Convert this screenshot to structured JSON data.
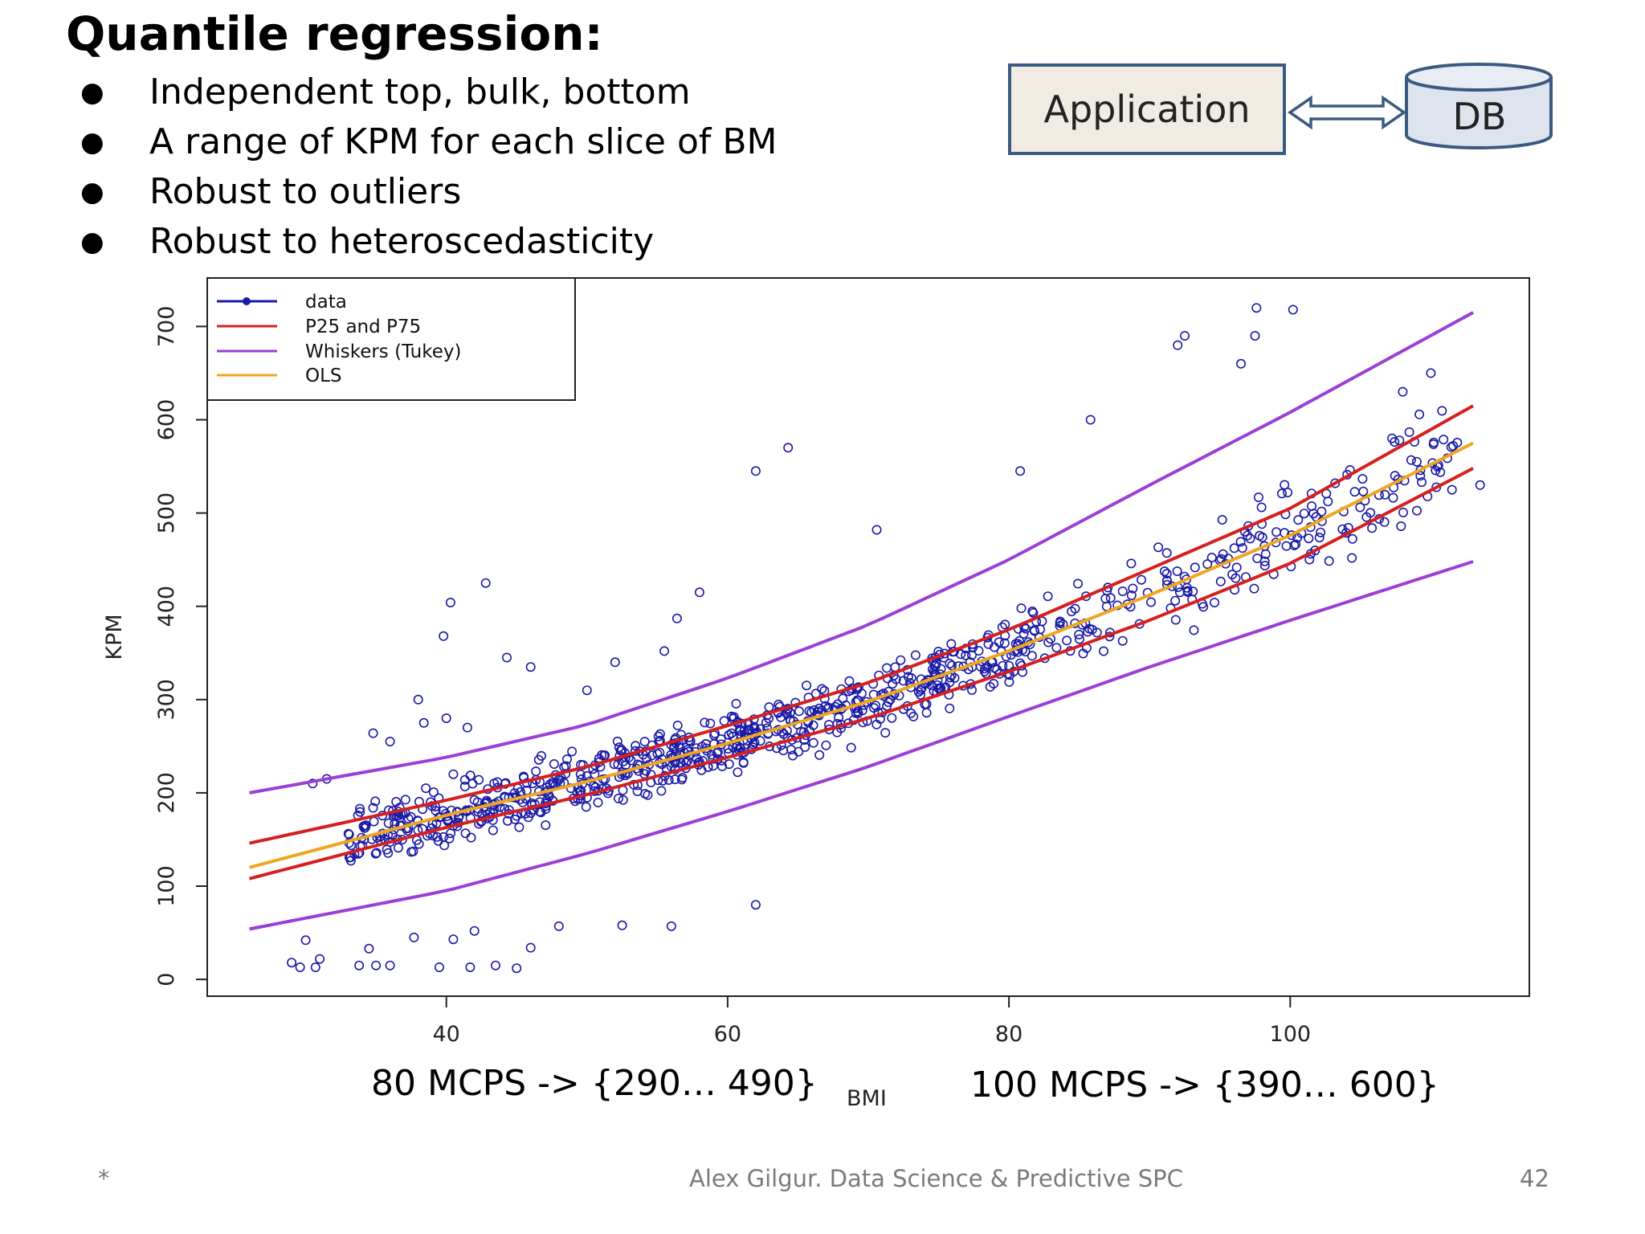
{
  "slide": {
    "title": "Quantile regression:",
    "bullets": [
      "Independent top, bulk, bottom",
      "A range of KPM for each slice of BM",
      "Robust to outliers",
      "Robust to heteroscedasticity"
    ],
    "bullet_glyph": "●",
    "diagram": {
      "app_label": "Application",
      "db_label": "DB"
    },
    "annotations": {
      "left": "80 MCPS -> {290… 490}",
      "right": "100 MCPS -> {390… 600}"
    },
    "footer": {
      "star": "*",
      "author": "Alex Gilgur.  Data Science & Predictive SPC",
      "page": "42"
    }
  },
  "chart_data": {
    "type": "scatter",
    "title": "",
    "xlabel": "BMI",
    "ylabel": "KPM",
    "xlim": [
      23,
      117
    ],
    "ylim": [
      -18,
      752
    ],
    "xticks": [
      40,
      60,
      80,
      100
    ],
    "yticks": [
      0,
      100,
      200,
      300,
      400,
      500,
      600,
      700
    ],
    "xtick_labels": [
      "40",
      "60",
      "80",
      "100"
    ],
    "ytick_labels": [
      "0",
      "100",
      "200",
      "300",
      "400",
      "500",
      "600",
      "700"
    ],
    "grid": false,
    "legend_position": "top-left",
    "legend": [
      {
        "name": "data",
        "color": "#1a1aa8",
        "marker": "dot"
      },
      {
        "name": "P25 and P75",
        "color": "#d61f1f"
      },
      {
        "name": "Whiskers (Tukey)",
        "color": "#9b3fd6"
      },
      {
        "name": "OLS",
        "color": "#f0a51e"
      }
    ],
    "series": [
      {
        "name": "Whiskers upper",
        "color": "#9b3fd6",
        "x": [
          26,
          40,
          50,
          60,
          70,
          80,
          90,
          100,
          113
        ],
        "y": [
          200,
          238,
          273,
          323,
          380,
          450,
          530,
          608,
          715
        ]
      },
      {
        "name": "P75",
        "color": "#d61f1f",
        "x": [
          26,
          40,
          50,
          60,
          70,
          80,
          90,
          100,
          113
        ],
        "y": [
          146,
          192,
          228,
          272,
          318,
          375,
          440,
          505,
          615
        ]
      },
      {
        "name": "OLS",
        "color": "#f0a51e",
        "x": [
          26,
          40,
          50,
          60,
          70,
          80,
          90,
          100,
          113
        ],
        "y": [
          120,
          176,
          212,
          253,
          298,
          352,
          412,
          476,
          575
        ]
      },
      {
        "name": "P25",
        "color": "#d61f1f",
        "x": [
          26,
          40,
          50,
          60,
          70,
          80,
          90,
          100,
          113
        ],
        "y": [
          108,
          163,
          198,
          238,
          280,
          330,
          385,
          446,
          548
        ]
      },
      {
        "name": "Whiskers lower",
        "color": "#9b3fd6",
        "x": [
          26,
          40,
          50,
          60,
          70,
          80,
          90,
          100,
          113
        ],
        "y": [
          54,
          95,
          135,
          180,
          228,
          282,
          335,
          385,
          448
        ]
      }
    ],
    "outliers": {
      "x": [
        29,
        29.6,
        30,
        30.7,
        31,
        33.8,
        35,
        36,
        34.5,
        37.7,
        39.5,
        40.5,
        41.7,
        42,
        43.5,
        45,
        46,
        48,
        52.5,
        56,
        39.8,
        40.3,
        40.5,
        42.8,
        38,
        36,
        62,
        64.3,
        70.6,
        85.8,
        80.8,
        92,
        92.5,
        96.5,
        97.5,
        97.6,
        100.2,
        109,
        110,
        62,
        56.4,
        40,
        41.5,
        34.8,
        38.4,
        58,
        52,
        55.5,
        44.3,
        46,
        50,
        30.5,
        31.5,
        113.5,
        111.5,
        108
      ],
      "y": [
        18,
        13,
        42,
        13,
        22,
        15,
        15,
        15,
        33,
        45,
        13,
        43,
        13,
        52,
        15,
        12,
        34,
        57,
        58,
        57,
        368,
        404,
        220,
        425,
        300,
        255,
        545,
        570,
        482,
        600,
        545,
        680,
        690,
        660,
        690,
        720,
        718,
        555,
        650,
        80,
        387,
        280,
        270,
        264,
        275,
        415,
        340,
        352,
        345,
        335,
        310,
        210,
        215,
        530,
        525,
        630
      ]
    },
    "bulk": {
      "description_free": true,
      "x_range": [
        26,
        113
      ],
      "points_note": ""
    }
  }
}
